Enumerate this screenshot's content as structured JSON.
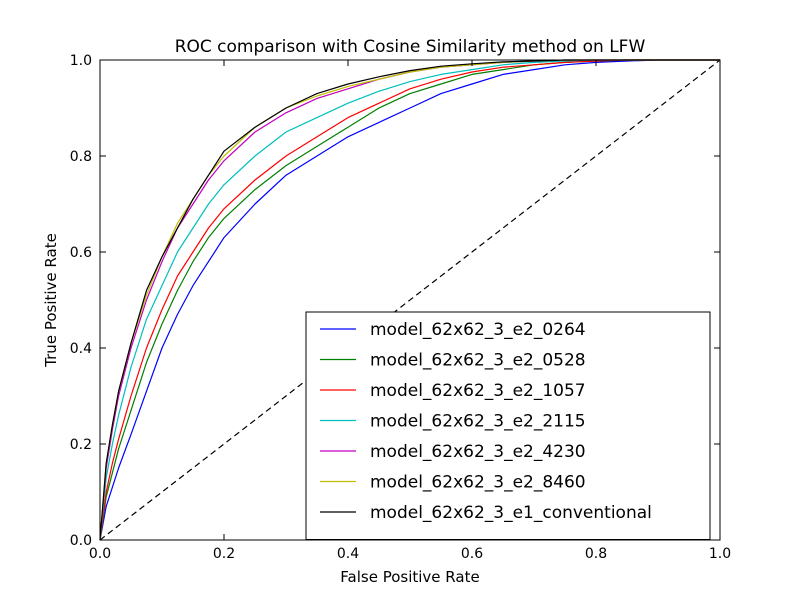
{
  "chart_data": {
    "type": "line",
    "title": "ROC comparison with Cosine Similarity method on LFW",
    "xlabel": "False Positive Rate",
    "ylabel": "True Positive Rate",
    "xlim": [
      0.0,
      1.0
    ],
    "ylim": [
      0.0,
      1.0
    ],
    "xticks": [
      "0.0",
      "0.2",
      "0.4",
      "0.6",
      "0.8",
      "1.0"
    ],
    "yticks": [
      "0.0",
      "0.2",
      "0.4",
      "0.6",
      "0.8",
      "1.0"
    ],
    "grid": false,
    "legend_position": "lower-right",
    "reference_line": {
      "style": "dashed",
      "color": "#000000",
      "x": [
        0,
        1
      ],
      "y": [
        0,
        1
      ]
    },
    "series": [
      {
        "name": "model_62x62_3_e2_0264",
        "color": "#0000ff",
        "x": [
          0,
          0.01,
          0.02,
          0.03,
          0.05,
          0.075,
          0.1,
          0.125,
          0.15,
          0.175,
          0.2,
          0.25,
          0.3,
          0.35,
          0.4,
          0.45,
          0.5,
          0.55,
          0.6,
          0.65,
          0.7,
          0.75,
          0.8,
          0.85,
          0.9,
          1.0
        ],
        "y": [
          0,
          0.07,
          0.11,
          0.15,
          0.22,
          0.31,
          0.4,
          0.47,
          0.53,
          0.58,
          0.63,
          0.7,
          0.76,
          0.8,
          0.84,
          0.87,
          0.9,
          0.93,
          0.95,
          0.97,
          0.98,
          0.99,
          0.995,
          0.998,
          1.0,
          1.0
        ]
      },
      {
        "name": "model_62x62_3_e2_0528",
        "color": "#008000",
        "x": [
          0,
          0.01,
          0.02,
          0.03,
          0.05,
          0.075,
          0.1,
          0.125,
          0.15,
          0.175,
          0.2,
          0.25,
          0.3,
          0.35,
          0.4,
          0.45,
          0.5,
          0.55,
          0.6,
          0.65,
          0.7,
          0.75,
          0.8,
          0.85,
          0.9,
          1.0
        ],
        "y": [
          0,
          0.09,
          0.14,
          0.19,
          0.27,
          0.37,
          0.45,
          0.52,
          0.58,
          0.63,
          0.67,
          0.73,
          0.78,
          0.82,
          0.86,
          0.9,
          0.93,
          0.95,
          0.97,
          0.98,
          0.99,
          0.995,
          0.998,
          1.0,
          1.0,
          1.0
        ]
      },
      {
        "name": "model_62x62_3_e2_1057",
        "color": "#ff0000",
        "x": [
          0,
          0.01,
          0.02,
          0.03,
          0.05,
          0.075,
          0.1,
          0.125,
          0.15,
          0.175,
          0.2,
          0.25,
          0.3,
          0.35,
          0.4,
          0.45,
          0.5,
          0.55,
          0.6,
          0.65,
          0.7,
          0.75,
          0.8,
          0.85,
          0.9,
          1.0
        ],
        "y": [
          0,
          0.1,
          0.16,
          0.21,
          0.3,
          0.4,
          0.48,
          0.55,
          0.6,
          0.65,
          0.69,
          0.75,
          0.8,
          0.84,
          0.88,
          0.91,
          0.94,
          0.96,
          0.975,
          0.985,
          0.99,
          0.995,
          0.998,
          1.0,
          1.0,
          1.0
        ]
      },
      {
        "name": "model_62x62_3_e2_2115",
        "color": "#00bfbf",
        "x": [
          0,
          0.01,
          0.02,
          0.03,
          0.05,
          0.075,
          0.1,
          0.125,
          0.15,
          0.175,
          0.2,
          0.25,
          0.3,
          0.35,
          0.4,
          0.45,
          0.5,
          0.55,
          0.6,
          0.65,
          0.7,
          0.75,
          0.8,
          0.85,
          0.9,
          1.0
        ],
        "y": [
          0,
          0.13,
          0.2,
          0.26,
          0.36,
          0.46,
          0.53,
          0.6,
          0.65,
          0.7,
          0.74,
          0.8,
          0.85,
          0.88,
          0.91,
          0.935,
          0.955,
          0.97,
          0.98,
          0.99,
          0.995,
          0.998,
          1.0,
          1.0,
          1.0,
          1.0
        ]
      },
      {
        "name": "model_62x62_3_e2_4230",
        "color": "#bf00bf",
        "x": [
          0,
          0.01,
          0.02,
          0.03,
          0.05,
          0.075,
          0.1,
          0.125,
          0.15,
          0.175,
          0.2,
          0.25,
          0.3,
          0.35,
          0.4,
          0.45,
          0.5,
          0.55,
          0.6,
          0.65,
          0.7,
          0.75,
          0.8,
          0.85,
          0.9,
          1.0
        ],
        "y": [
          0,
          0.15,
          0.23,
          0.3,
          0.4,
          0.5,
          0.58,
          0.65,
          0.7,
          0.75,
          0.79,
          0.85,
          0.89,
          0.92,
          0.94,
          0.96,
          0.975,
          0.985,
          0.99,
          0.995,
          0.998,
          1.0,
          1.0,
          1.0,
          1.0,
          1.0
        ]
      },
      {
        "name": "model_62x62_3_e2_8460",
        "color": "#bfbf00",
        "x": [
          0,
          0.01,
          0.02,
          0.03,
          0.05,
          0.075,
          0.1,
          0.125,
          0.15,
          0.175,
          0.2,
          0.25,
          0.3,
          0.35,
          0.4,
          0.45,
          0.5,
          0.55,
          0.6,
          0.65,
          0.7,
          0.75,
          0.8,
          0.85,
          0.9,
          1.0
        ],
        "y": [
          0,
          0.16,
          0.24,
          0.31,
          0.41,
          0.51,
          0.59,
          0.66,
          0.71,
          0.76,
          0.8,
          0.86,
          0.9,
          0.925,
          0.945,
          0.96,
          0.975,
          0.985,
          0.99,
          0.995,
          0.998,
          1.0,
          1.0,
          1.0,
          1.0,
          1.0
        ]
      },
      {
        "name": "model_62x62_3_e1_conventional",
        "color": "#000000",
        "x": [
          0,
          0.01,
          0.02,
          0.03,
          0.05,
          0.075,
          0.1,
          0.125,
          0.15,
          0.175,
          0.2,
          0.25,
          0.3,
          0.35,
          0.4,
          0.45,
          0.5,
          0.55,
          0.6,
          0.65,
          0.7,
          0.75,
          0.8,
          0.85,
          0.9,
          1.0
        ],
        "y": [
          0,
          0.16,
          0.24,
          0.31,
          0.41,
          0.52,
          0.59,
          0.65,
          0.71,
          0.76,
          0.81,
          0.86,
          0.9,
          0.93,
          0.95,
          0.965,
          0.978,
          0.987,
          0.992,
          0.996,
          0.998,
          1.0,
          1.0,
          1.0,
          1.0,
          1.0
        ]
      }
    ]
  }
}
